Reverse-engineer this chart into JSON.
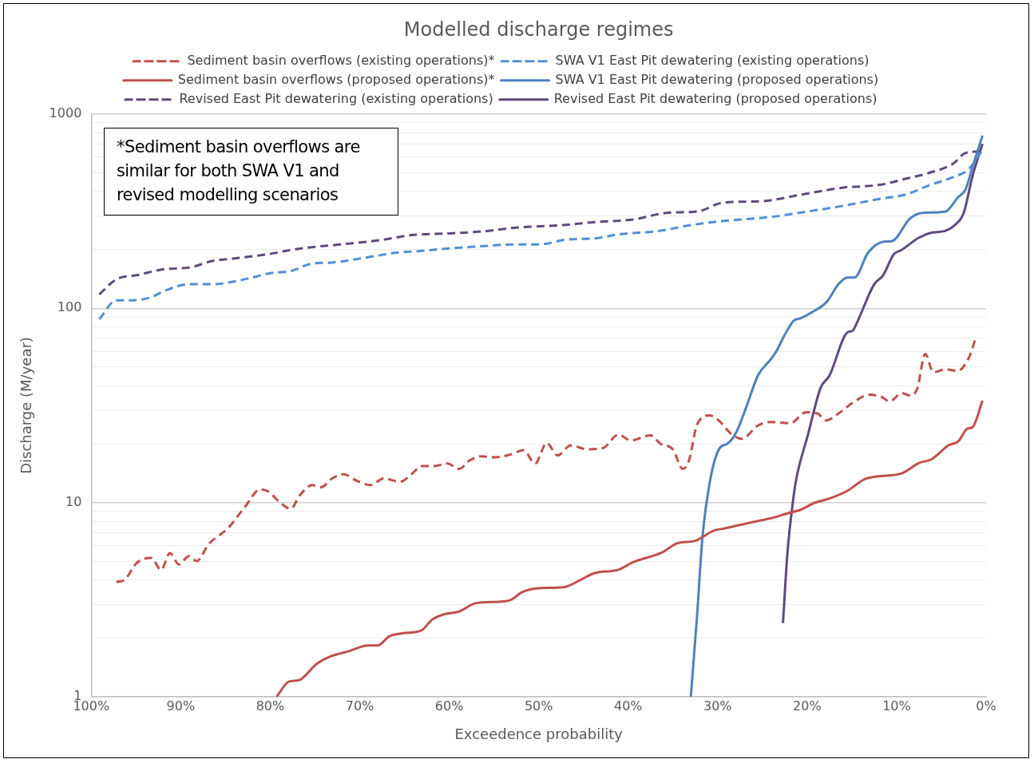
{
  "chart_data": {
    "type": "line",
    "title": "Modelled discharge regimes",
    "xlabel": "Exceedence probability",
    "ylabel": "Discharge (M/year)",
    "xlim": [
      100,
      0
    ],
    "xticks": [
      {
        "value": 100,
        "label": "100%"
      },
      {
        "value": 90,
        "label": "90%"
      },
      {
        "value": 80,
        "label": "80%"
      },
      {
        "value": 70,
        "label": "70%"
      },
      {
        "value": 60,
        "label": "60%"
      },
      {
        "value": 50,
        "label": "50%"
      },
      {
        "value": 40,
        "label": "40%"
      },
      {
        "value": 30,
        "label": "30%"
      },
      {
        "value": 20,
        "label": "20%"
      },
      {
        "value": 10,
        "label": "10%"
      },
      {
        "value": 0,
        "label": "0%"
      }
    ],
    "ylim": [
      1,
      1000
    ],
    "yticks": [
      1,
      {
        "value": 2,
        "label": null
      },
      {
        "value": 3,
        "label": null
      },
      {
        "value": 4,
        "label": null
      },
      {
        "value": 5,
        "label": null
      },
      {
        "value": 6,
        "label": null
      },
      {
        "value": 7,
        "label": null
      },
      {
        "value": 8,
        "label": null
      },
      {
        "value": 9,
        "label": null
      },
      10,
      {
        "value": 20,
        "label": null
      },
      {
        "value": 30,
        "label": null
      },
      {
        "value": 40,
        "label": null
      },
      {
        "value": 50,
        "label": null
      },
      {
        "value": 60,
        "label": null
      },
      {
        "value": 70,
        "label": null
      },
      {
        "value": 80,
        "label": null
      },
      {
        "value": 90,
        "label": null
      },
      100,
      {
        "value": 200,
        "label": null
      },
      {
        "value": 300,
        "label": null
      },
      {
        "value": 400,
        "label": null
      },
      {
        "value": 500,
        "label": null
      },
      {
        "value": 600,
        "label": null
      },
      {
        "value": 700,
        "label": null
      },
      {
        "value": 800,
        "label": null
      },
      {
        "value": 900,
        "label": null
      },
      1000
    ],
    "log": "y",
    "grid": "y",
    "legend": "top",
    "marker": "none",
    "annotations": [
      "*Sediment basin overflows are similar for both SWA V1 and revised modelling scenarios"
    ],
    "series": [
      {
        "name": "Sediment basin overflows (existing operations)*",
        "color": "#c0504d",
        "line_style": "dashed",
        "x": [
          97.2,
          96.3,
          94.9,
          93.3,
          92.2,
          91.2,
          90.2,
          89.1,
          88.2,
          86.9,
          84.7,
          82.9,
          81.1,
          80.2,
          78.9,
          77.7,
          76.7,
          75.3,
          74.3,
          73.1,
          71.8,
          70.4,
          68.8,
          67.3,
          65.5,
          64.2,
          63.1,
          61.7,
          60.2,
          58.9,
          57.7,
          56.4,
          54.9,
          53.1,
          51.7,
          50.4,
          49.1,
          47.9,
          46.4,
          44.6,
          42.8,
          41.1,
          39.7,
          37.5,
          36.4,
          35.0,
          33.9,
          33.2,
          32.3,
          30.9,
          29.9,
          28.4,
          27.3,
          25.5,
          24.1,
          21.9,
          20.1,
          18.8,
          17.9,
          16.6,
          14.8,
          13.0,
          11.7,
          10.8,
          9.4,
          8.5,
          7.7,
          6.8,
          5.9,
          4.5,
          3.2,
          1.9,
          1.2
        ],
        "values": [
          3.9,
          4.0,
          4.9,
          5.2,
          4.5,
          5.5,
          4.8,
          5.3,
          5.0,
          6.1,
          7.4,
          9.4,
          11.7,
          11.4,
          10.0,
          9.3,
          10.9,
          12.3,
          12.0,
          13.3,
          14.0,
          13.0,
          12.3,
          13.3,
          12.8,
          14.0,
          15.4,
          15.4,
          15.9,
          14.9,
          16.5,
          17.3,
          17.1,
          17.7,
          18.6,
          15.9,
          20.3,
          17.5,
          19.7,
          18.8,
          19.1,
          22.4,
          20.9,
          22.2,
          20.1,
          18.8,
          14.9,
          16.5,
          25.2,
          28.1,
          26.5,
          22.4,
          21.3,
          24.9,
          26.0,
          25.6,
          29.2,
          28.7,
          26.5,
          28.5,
          32.9,
          35.9,
          35.0,
          33.2,
          36.6,
          35.6,
          38.5,
          58.2,
          46.9,
          48.5,
          47.6,
          56.0,
          69.5
        ]
      },
      {
        "name": "SWA V1 East Pit dewatering (existing operations)",
        "color": "#558ed5",
        "line_style": "dashed",
        "x": [
          99.1,
          97.2,
          95.4,
          93.3,
          91.8,
          89.1,
          86.5,
          83.8,
          82.0,
          80.2,
          77.6,
          75.3,
          73.1,
          70.4,
          68.2,
          66.0,
          63.3,
          60.2,
          57.5,
          52.6,
          50.0,
          46.8,
          43.7,
          41.1,
          36.6,
          33.0,
          29.5,
          24.1,
          19.7,
          16.1,
          11.7,
          9.0,
          6.4,
          3.7,
          1.9,
          0.5
        ],
        "values": [
          88,
          110,
          110,
          114,
          123,
          133,
          133,
          138,
          144,
          151,
          156,
          170,
          172,
          179,
          186,
          193,
          197,
          203,
          207,
          213,
          213,
          226,
          229,
          240,
          250,
          268,
          281,
          295,
          316,
          336,
          367,
          385,
          429,
          473,
          522,
          642
        ]
      },
      {
        "name": "Sediment basin overflows (proposed operations)*",
        "color": "#c0504d",
        "line_style": "solid",
        "x": [
          79.3,
          77.9,
          76.8,
          74.8,
          73.2,
          71.2,
          69.1,
          68.0,
          66.7,
          65.1,
          63.1,
          61.9,
          60.5,
          58.9,
          57.0,
          54.4,
          53.1,
          51.8,
          50.0,
          47.2,
          45.5,
          43.8,
          41.1,
          39.5,
          36.2,
          34.5,
          32.5,
          30.5,
          29.2,
          25.5,
          24.1,
          22.2,
          20.8,
          19.1,
          17.5,
          15.5,
          13.4,
          9.5,
          7.5,
          6.1,
          4.2,
          3.1,
          2.1,
          1.5,
          0.4
        ],
        "values": [
          1.0,
          1.2,
          1.22,
          1.48,
          1.62,
          1.72,
          1.84,
          1.84,
          2.05,
          2.13,
          2.2,
          2.5,
          2.67,
          2.75,
          3.04,
          3.09,
          3.16,
          3.47,
          3.63,
          3.67,
          3.96,
          4.33,
          4.51,
          4.92,
          5.54,
          6.18,
          6.36,
          7.16,
          7.37,
          8.05,
          8.29,
          8.8,
          9.16,
          10.0,
          10.5,
          11.5,
          13.3,
          14.1,
          16.0,
          16.7,
          19.7,
          20.7,
          24.0,
          24.5,
          33.5
        ]
      },
      {
        "name": "SWA V1 East Pit dewatering (proposed operations)",
        "color": "#4f81bd",
        "line_style": "solid",
        "x": [
          33.0,
          32.3,
          31.7,
          30.8,
          29.8,
          28.9,
          27.9,
          26.8,
          25.5,
          24.1,
          23.5,
          22.5,
          21.5,
          20.7,
          19.5,
          17.8,
          16.5,
          15.5,
          14.7,
          13.2,
          11.5,
          10.5,
          8.5,
          7.1,
          4.6,
          3.1,
          2.3,
          1.5,
          0.4
        ],
        "values": [
          1.0,
          2.62,
          6.6,
          13.3,
          19.0,
          20.1,
          23.1,
          31.0,
          45.1,
          54.4,
          59.4,
          73,
          86.3,
          88.9,
          95.2,
          108,
          133,
          144,
          144,
          193,
          220,
          222,
          290,
          310,
          314,
          374,
          408,
          538,
          774
        ]
      },
      {
        "name": "Revised East Pit dewatering (existing operations)",
        "color": "#604a7b",
        "line_style": "dashed",
        "x": [
          99.1,
          97.2,
          94.9,
          91.8,
          89.1,
          86.5,
          83.8,
          80.2,
          76.7,
          72.2,
          67.8,
          64.2,
          59.8,
          55.7,
          52.6,
          47.3,
          43.7,
          39.3,
          35.7,
          32.1,
          29.5,
          25.0,
          20.6,
          16.1,
          11.7,
          9.0,
          6.4,
          3.7,
          2.3,
          0.5
        ],
        "values": [
          118,
          141,
          148,
          159,
          162,
          175,
          181,
          190,
          203,
          213,
          224,
          238,
          243,
          250,
          260,
          268,
          278,
          287,
          310,
          316,
          349,
          356,
          385,
          417,
          433,
          464,
          497,
          554,
          630,
          642
        ]
      },
      {
        "name": "Revised East Pit dewatering (proposed operations)",
        "color": "#604a7b",
        "line_style": "solid",
        "x": [
          22.7,
          22.2,
          21.6,
          21.2,
          19.9,
          18.5,
          17.5,
          15.5,
          14.9,
          14.5,
          12.5,
          11.5,
          10.3,
          9.5,
          7.5,
          6.1,
          4.6,
          3.5,
          2.5,
          1.5,
          0.4
        ],
        "values": [
          2.4,
          5.5,
          10.0,
          13.3,
          22.4,
          38.9,
          45.1,
          75.2,
          76.7,
          83,
          133,
          148,
          190,
          199,
          231,
          245,
          250,
          268,
          310,
          483,
          702
        ]
      }
    ]
  }
}
